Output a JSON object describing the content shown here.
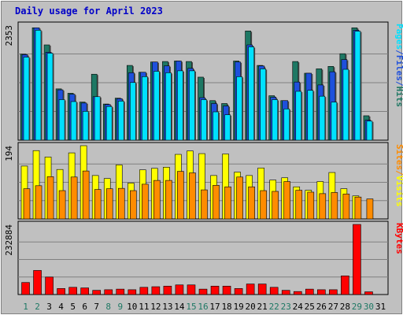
{
  "chart_data": {
    "type": "bar",
    "title": "Daily usage for April 2023",
    "categories": [
      "1",
      "2",
      "3",
      "4",
      "5",
      "6",
      "7",
      "8",
      "9",
      "10",
      "11",
      "12",
      "13",
      "14",
      "15",
      "16",
      "17",
      "18",
      "19",
      "20",
      "21",
      "22",
      "23",
      "24",
      "25",
      "26",
      "27",
      "28",
      "29",
      "30",
      "31"
    ],
    "weekend_days": [
      "1",
      "2",
      "8",
      "9",
      "15",
      "16",
      "22",
      "23",
      "29",
      "30"
    ],
    "colors": {
      "hits": "#1e7864",
      "files": "#1e50dc",
      "pages": "#00e1ff",
      "visits": "#ffff00",
      "sites": "#ff8c00",
      "kbytes": "#ff0000",
      "weekday_label": "#1e7864",
      "weekend_label": "#1e7864"
    },
    "panels": [
      {
        "id": "hits-files-pages",
        "scale_label": "2353",
        "ymax": 2353,
        "legend": [
          {
            "text": "Hits",
            "color": "#1e7864"
          },
          {
            "text": "/",
            "color": "#1e50dc"
          },
          {
            "text": "Files",
            "color": "#1e50dc"
          },
          {
            "text": "/",
            "color": "#1e50dc"
          },
          {
            "text": "Pages",
            "color": "#00e1ff"
          }
        ],
        "series": [
          {
            "name": "Hits",
            "key": "hits",
            "values": [
              1760,
              2300,
              1950,
              1050,
              960,
              780,
              1350,
              740,
              860,
              1530,
              1390,
              1600,
              1610,
              1620,
              1610,
              1290,
              810,
              750,
              1620,
              2235,
              1530,
              910,
              810,
              1610,
              1370,
              1460,
              1510,
              1770,
              2300,
              500,
              0
            ]
          },
          {
            "name": "Files",
            "key": "files",
            "values": [
              1750,
              2300,
              1800,
              1030,
              940,
              760,
              890,
              730,
              850,
              1380,
              1390,
              1600,
              1520,
              1620,
              1470,
              870,
              750,
              700,
              1600,
              1950,
              1520,
              880,
              810,
              1190,
              1370,
              1130,
              1400,
              1650,
              2250,
              410,
              0
            ]
          },
          {
            "name": "Pages",
            "key": "pages",
            "values": [
              1700,
              2250,
              1780,
              830,
              790,
              590,
              890,
              690,
              800,
              1180,
              1300,
              1410,
              1380,
              1420,
              1420,
              830,
              580,
              520,
              1300,
              1910,
              1460,
              830,
              640,
              1000,
              1020,
              900,
              780,
              1450,
              2230,
              390,
              0
            ]
          }
        ]
      },
      {
        "id": "visits-sites",
        "scale_label": "194",
        "ymax": 194,
        "legend": [
          {
            "text": "Visits",
            "color": "#ffff00"
          },
          {
            "text": "/",
            "color": "#ff8c00"
          },
          {
            "text": "Sites",
            "color": "#ff8c00"
          }
        ],
        "series": [
          {
            "name": "Visits",
            "key": "visits",
            "values": [
              140,
              181,
              164,
              131,
              175,
              194,
              115,
              107,
              143,
              95,
              130,
              134,
              137,
              171,
              180,
              173,
              115,
              172,
              124,
              115,
              135,
              103,
              109,
              85,
              76,
              99,
              123,
              80,
              61,
              0,
              0
            ]
          },
          {
            "name": "Sites",
            "key": "sites",
            "values": [
              80,
              88,
              112,
              75,
              111,
              127,
              78,
              80,
              81,
              75,
              92,
              102,
              102,
              126,
              122,
              77,
              89,
              85,
              111,
              85,
              75,
              73,
              99,
              76,
              71,
              67,
              70,
              66,
              58,
              53,
              0
            ]
          }
        ]
      },
      {
        "id": "kbytes",
        "scale_label": "232884",
        "ymax": 232884,
        "legend": [
          {
            "text": "KBytes",
            "color": "#ff0000"
          }
        ],
        "series": [
          {
            "name": "KBytes",
            "key": "kbytes",
            "values": [
              40000,
              80000,
              58000,
              20000,
              24000,
              22000,
              14000,
              16000,
              18000,
              16000,
              24000,
              26000,
              28000,
              32000,
              32000,
              18000,
              28000,
              28000,
              20000,
              35000,
              35000,
              24000,
              14000,
              10000,
              18000,
              16000,
              16000,
              62000,
              232884,
              9000,
              0
            ]
          }
        ]
      }
    ]
  }
}
